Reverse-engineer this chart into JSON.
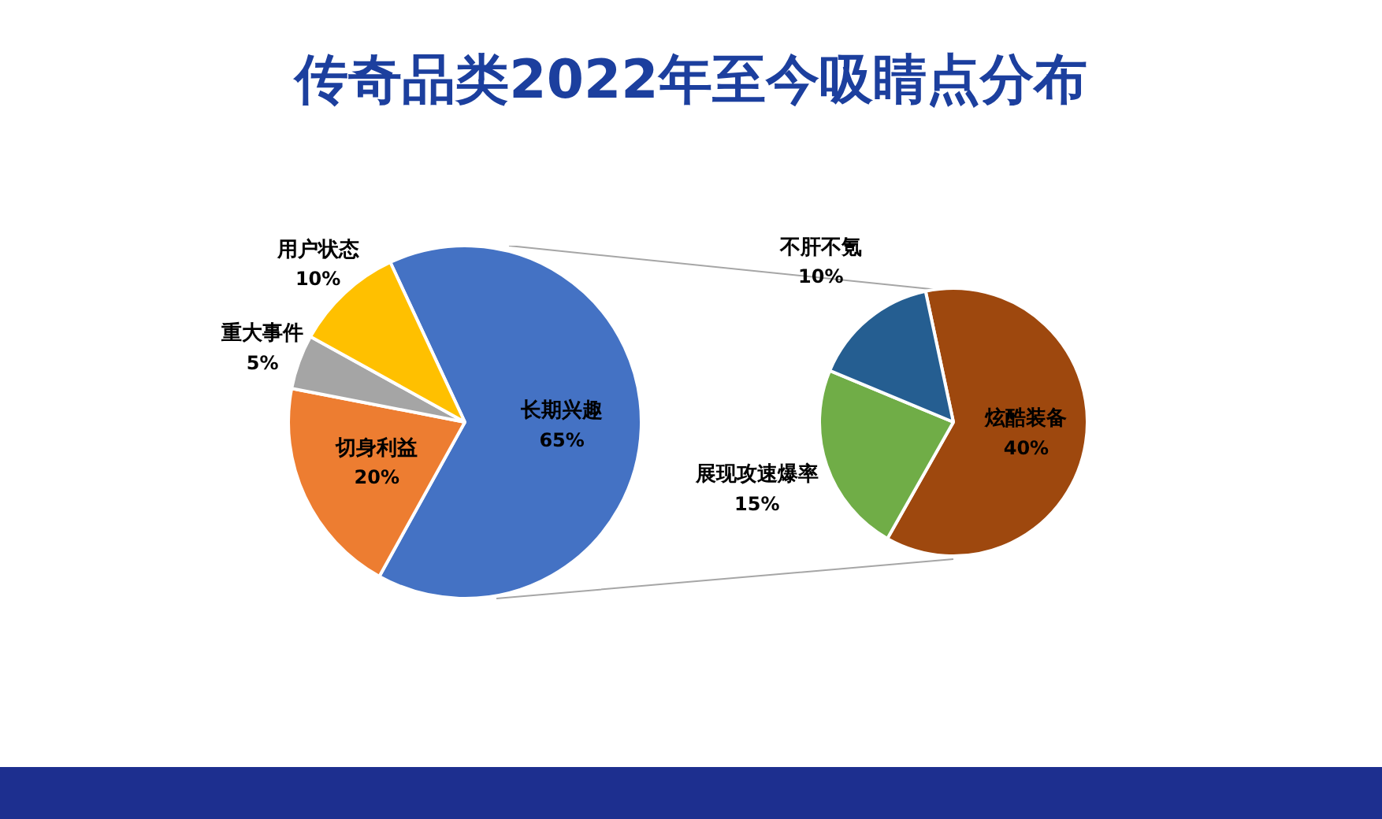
{
  "chart_data": [
    {
      "type": "pie",
      "title": "传奇品类2022年至今吸睛点分布",
      "categories": [
        "长期兴趣",
        "切身利益",
        "重大事件",
        "用户状态"
      ],
      "values": [
        65,
        20,
        5,
        10
      ],
      "colors": [
        "#4472c4",
        "#ed7d31",
        "#a5a5a5",
        "#ffc000"
      ],
      "value_labels": [
        "65%",
        "20%",
        "5%",
        "10%"
      ]
    },
    {
      "type": "pie",
      "categories": [
        "炫酷装备",
        "展现攻速爆率",
        "不肝不氪"
      ],
      "values": [
        40,
        15,
        10
      ],
      "colors": [
        "#9e480e",
        "#70ad47",
        "#255e91"
      ],
      "value_labels": [
        "40%",
        "15%",
        "10%"
      ]
    }
  ]
}
